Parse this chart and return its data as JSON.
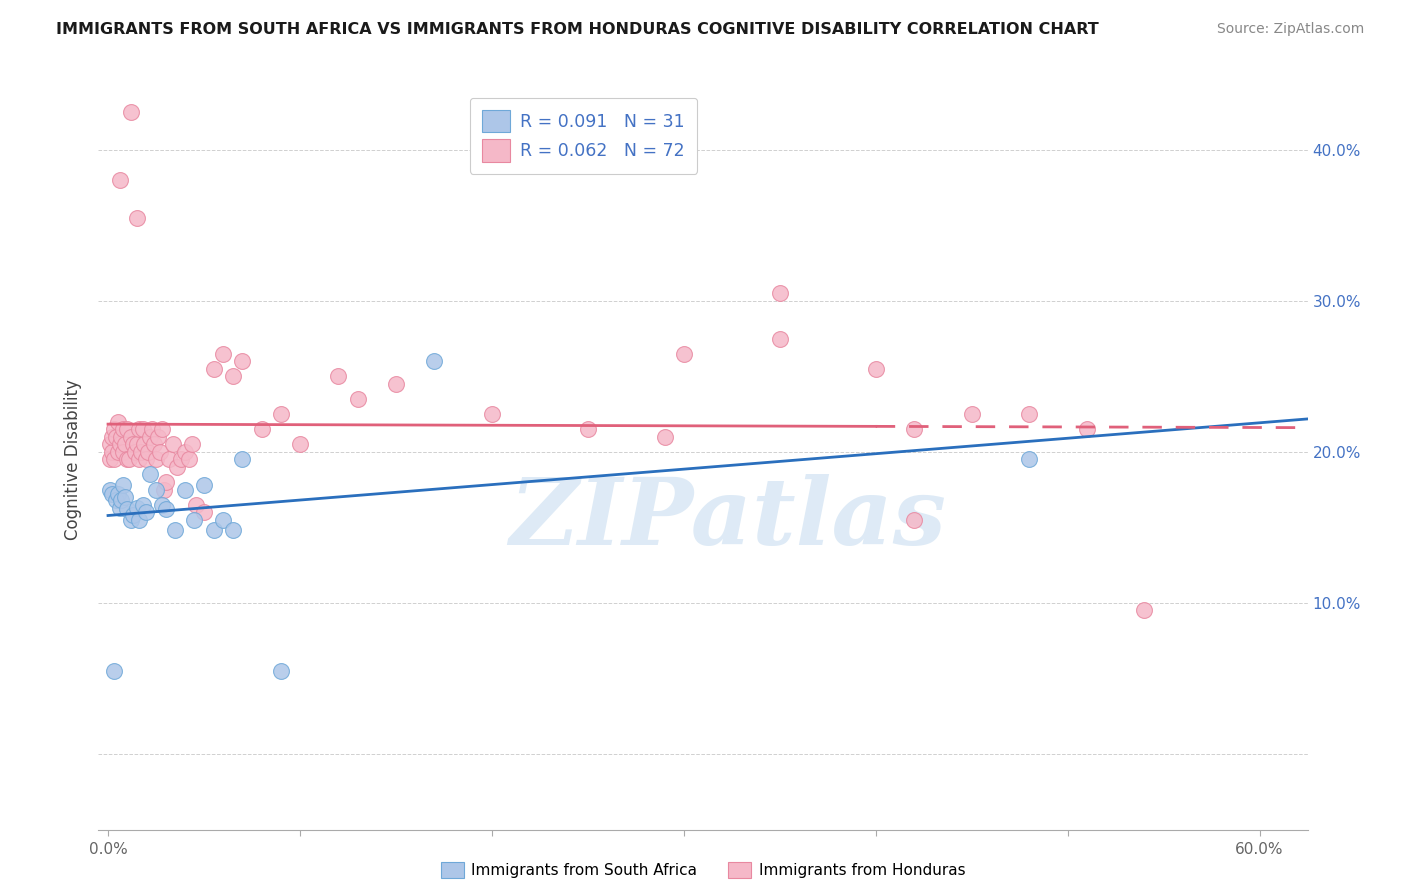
{
  "title": "IMMIGRANTS FROM SOUTH AFRICA VS IMMIGRANTS FROM HONDURAS COGNITIVE DISABILITY CORRELATION CHART",
  "source": "Source: ZipAtlas.com",
  "ylabel": "Cognitive Disability",
  "xlim": [
    -0.005,
    0.625
  ],
  "ylim": [
    -0.05,
    0.44
  ],
  "x_tick_positions": [
    0.0,
    0.1,
    0.2,
    0.3,
    0.4,
    0.5,
    0.6
  ],
  "x_tick_labels": [
    "0.0%",
    "",
    "",
    "",
    "",
    "",
    "60.0%"
  ],
  "y_tick_positions": [
    0.0,
    0.1,
    0.2,
    0.3,
    0.4
  ],
  "y_tick_labels_right": [
    "",
    "10.0%",
    "20.0%",
    "30.0%",
    "40.0%"
  ],
  "legend_line1": "R = 0.091   N = 31",
  "legend_line2": "R = 0.062   N = 72",
  "color_south_africa_fill": "#adc6e8",
  "color_south_africa_edge": "#6fa8d8",
  "color_honduras_fill": "#f5b8c8",
  "color_honduras_edge": "#e888a0",
  "color_line_south_africa": "#2a6fbd",
  "color_line_honduras": "#e0607a",
  "color_text_blue": "#4472c4",
  "color_grid": "#d0d0d0",
  "watermark_text": "ZIPatlas",
  "watermark_color": "#c8ddf0",
  "sa_x": [
    0.001,
    0.002,
    0.003,
    0.004,
    0.005,
    0.006,
    0.007,
    0.008,
    0.009,
    0.01,
    0.012,
    0.013,
    0.015,
    0.016,
    0.018,
    0.02,
    0.022,
    0.025,
    0.028,
    0.03,
    0.035,
    0.04,
    0.045,
    0.05,
    0.055,
    0.06,
    0.065,
    0.07,
    0.09,
    0.48,
    0.17
  ],
  "sa_y": [
    0.175,
    0.172,
    0.055,
    0.168,
    0.172,
    0.163,
    0.168,
    0.178,
    0.17,
    0.162,
    0.155,
    0.158,
    0.163,
    0.155,
    0.165,
    0.16,
    0.185,
    0.175,
    0.165,
    0.162,
    0.148,
    0.175,
    0.155,
    0.178,
    0.148,
    0.155,
    0.148,
    0.195,
    0.055,
    0.195,
    0.26
  ],
  "hn_x": [
    0.001,
    0.001,
    0.002,
    0.002,
    0.003,
    0.003,
    0.004,
    0.005,
    0.005,
    0.006,
    0.006,
    0.007,
    0.008,
    0.008,
    0.009,
    0.01,
    0.01,
    0.011,
    0.012,
    0.012,
    0.013,
    0.014,
    0.015,
    0.015,
    0.016,
    0.016,
    0.017,
    0.018,
    0.019,
    0.02,
    0.021,
    0.022,
    0.023,
    0.024,
    0.025,
    0.026,
    0.027,
    0.028,
    0.029,
    0.03,
    0.032,
    0.034,
    0.036,
    0.038,
    0.04,
    0.042,
    0.044,
    0.046,
    0.05,
    0.055,
    0.06,
    0.065,
    0.07,
    0.08,
    0.09,
    0.1,
    0.12,
    0.13,
    0.15,
    0.2,
    0.25,
    0.3,
    0.35,
    0.4,
    0.42,
    0.45,
    0.48,
    0.51,
    0.54,
    0.42,
    0.35,
    0.29
  ],
  "hn_y": [
    0.205,
    0.195,
    0.2,
    0.21,
    0.195,
    0.215,
    0.21,
    0.2,
    0.22,
    0.205,
    0.38,
    0.21,
    0.215,
    0.2,
    0.205,
    0.195,
    0.215,
    0.195,
    0.21,
    0.425,
    0.205,
    0.2,
    0.205,
    0.355,
    0.195,
    0.215,
    0.2,
    0.215,
    0.205,
    0.195,
    0.2,
    0.21,
    0.215,
    0.205,
    0.195,
    0.21,
    0.2,
    0.215,
    0.175,
    0.18,
    0.195,
    0.205,
    0.19,
    0.195,
    0.2,
    0.195,
    0.205,
    0.165,
    0.16,
    0.255,
    0.265,
    0.25,
    0.26,
    0.215,
    0.225,
    0.205,
    0.25,
    0.235,
    0.245,
    0.225,
    0.215,
    0.265,
    0.305,
    0.255,
    0.215,
    0.225,
    0.225,
    0.215,
    0.095,
    0.155,
    0.275,
    0.21
  ]
}
